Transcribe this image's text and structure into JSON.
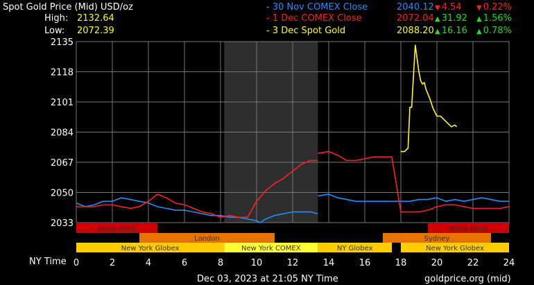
{
  "header": {
    "title": "Spot Gold Price (Mid) USD/oz",
    "high_label": "High:",
    "high_value": "2132.64",
    "low_label": "Low:",
    "low_value": "2072.39"
  },
  "legend": [
    {
      "label": "- 30 Nov COMEX Close",
      "price": "2040.12",
      "change": "4.54",
      "pct": "0.22%",
      "direction": "down",
      "color": "#1e90ff"
    },
    {
      "label": "- 1 Dec COMEX Close",
      "price": "2072.04",
      "change": "31.92",
      "pct": "1.56%",
      "direction": "up",
      "color": "#ff2020"
    },
    {
      "label": "- 3 Dec Spot Gold",
      "price": "2088.20",
      "change": "16.16",
      "pct": "0.78%",
      "direction": "up",
      "color": "#ffff00"
    }
  ],
  "footer": {
    "timestamp": "Dec 03, 2023 at 21:05 NY Time",
    "source": "goldprice.org (mid)"
  },
  "chart_data": {
    "type": "line",
    "xlabel": "NY Time",
    "xlim": [
      0,
      24
    ],
    "ylim": [
      2030,
      2135
    ],
    "x_ticks": [
      0,
      2,
      4,
      6,
      8,
      10,
      12,
      14,
      16,
      18,
      20,
      22,
      24
    ],
    "y_ticks": [
      2135,
      2118,
      2101,
      2084,
      2067,
      2050,
      2033
    ],
    "grid": true,
    "shaded_region": [
      8.2,
      13.4
    ],
    "series": [
      {
        "name": "30 Nov COMEX Close",
        "color": "#1e90ff",
        "x": [
          0,
          0.5,
          1,
          1.5,
          2,
          2.5,
          3,
          3.5,
          4,
          4.5,
          5,
          5.5,
          6,
          6.5,
          7,
          7.5,
          8,
          8.5,
          9,
          9.5,
          10,
          10.2,
          10.5,
          11,
          11.5,
          12,
          12.5,
          13,
          13.4
        ],
        "y": [
          2044,
          2042,
          2043,
          2045,
          2045,
          2047,
          2046,
          2045,
          2044,
          2042,
          2041,
          2040,
          2040,
          2039,
          2038,
          2037,
          2037,
          2036,
          2036,
          2035,
          2034,
          2033,
          2035,
          2037,
          2038,
          2039,
          2039,
          2039,
          2038
        ]
      },
      {
        "name": "30 Nov COMEX Close (cont.)",
        "color": "#1e90ff",
        "x": [
          13.4,
          14,
          14.5,
          15,
          15.5,
          16,
          16.5,
          17,
          17.5,
          18,
          18.5,
          19,
          19.5,
          20,
          20.5,
          21,
          21.5,
          22,
          22.5,
          23,
          23.5,
          24
        ],
        "y": [
          2048,
          2049,
          2047,
          2046,
          2045,
          2045,
          2045,
          2045,
          2045,
          2045,
          2045,
          2046,
          2046,
          2047,
          2045,
          2046,
          2045,
          2046,
          2047,
          2046,
          2045,
          2045
        ]
      },
      {
        "name": "1 Dec COMEX Close",
        "color": "#ff2020",
        "x": [
          0,
          0.5,
          1,
          1.5,
          2,
          2.5,
          3,
          3.5,
          4,
          4.5,
          5,
          5.5,
          6,
          6.5,
          7,
          7.5,
          8,
          8.5,
          9,
          9.5,
          10,
          10.5,
          11,
          11.5,
          12,
          12.5,
          13,
          13.4
        ],
        "y": [
          2042,
          2042,
          2042,
          2043,
          2043,
          2042,
          2041,
          2042,
          2045,
          2049,
          2047,
          2044,
          2043,
          2041,
          2039,
          2038,
          2036,
          2037,
          2036,
          2036,
          2045,
          2051,
          2055,
          2058,
          2062,
          2066,
          2068,
          2068
        ]
      },
      {
        "name": "1 Dec COMEX Close (cont.)",
        "color": "#ff2020",
        "x": [
          13.4,
          14,
          14.5,
          15,
          15.5,
          16,
          16.5,
          17,
          17.5,
          18,
          18.5,
          19,
          19.5,
          20,
          20.5,
          21,
          21.5,
          22,
          22.5,
          23,
          23.5,
          24
        ],
        "y": [
          2072,
          2073,
          2071,
          2068,
          2068,
          2069,
          2070,
          2070,
          2070,
          2039,
          2039,
          2039,
          2040,
          2042,
          2043,
          2043,
          2042,
          2041,
          2041,
          2041,
          2041,
          2042
        ]
      },
      {
        "name": "3 Dec Spot Gold",
        "color": "#ffff00",
        "x": [
          18,
          18.2,
          18.4,
          18.5,
          18.6,
          18.8,
          19,
          19.1,
          19.2,
          19.3,
          19.4,
          19.6,
          19.8,
          20,
          20.2,
          20.4,
          20.6,
          20.8,
          21,
          21.1
        ],
        "y": [
          2073,
          2073,
          2075,
          2098,
          2098,
          2133,
          2118,
          2113,
          2111,
          2112,
          2108,
          2103,
          2097,
          2093,
          2093,
          2091,
          2089,
          2087,
          2088,
          2087
        ]
      }
    ],
    "sessions": [
      {
        "row": 0,
        "start": 0,
        "end": 4.5,
        "label": "Hong Kong",
        "color": "#cc0000"
      },
      {
        "row": 0,
        "start": 19.5,
        "end": 24,
        "label": "Hong Kong",
        "color": "#cc0000"
      },
      {
        "row": 1,
        "start": 3.5,
        "end": 11,
        "label": "London",
        "color": "#e67300"
      },
      {
        "row": 1,
        "start": 17,
        "end": 23,
        "label": "Sydney",
        "color": "#e67300"
      },
      {
        "row": 2,
        "start": 0,
        "end": 8.2,
        "label": "New York Globex",
        "color": "#ffcc00"
      },
      {
        "row": 2,
        "start": 8.2,
        "end": 13.4,
        "label": "New York COMEX",
        "color": "#ffff33"
      },
      {
        "row": 2,
        "start": 13.4,
        "end": 17.5,
        "label": "NY Globex",
        "color": "#ffcc00"
      },
      {
        "row": 2,
        "start": 18,
        "end": 24,
        "label": "New York Globex",
        "color": "#ffcc00"
      }
    ]
  }
}
